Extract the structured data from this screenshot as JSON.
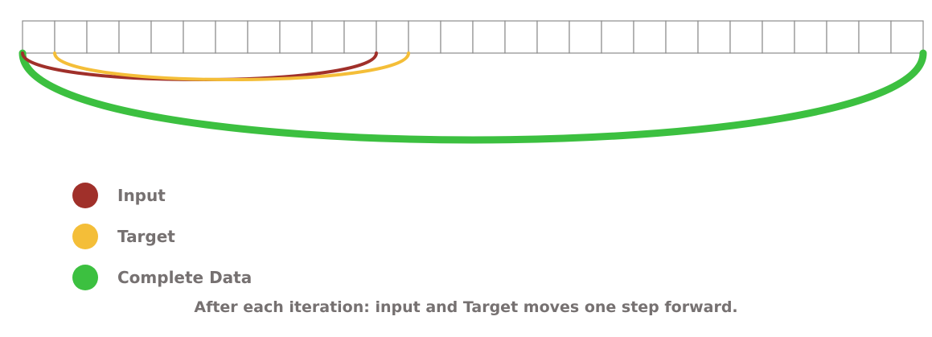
{
  "diagram": {
    "cell_count": 28,
    "input_span": {
      "start_cell": 0,
      "end_cell": 11
    },
    "target_span": {
      "start_cell": 1,
      "end_cell": 12
    },
    "complete_span": {
      "start_cell": 0,
      "end_cell": 28
    }
  },
  "legend": {
    "items": [
      {
        "key": "input",
        "label": "Input",
        "color": "#a0302a"
      },
      {
        "key": "target",
        "label": "Target",
        "color": "#f4be38"
      },
      {
        "key": "complete",
        "label": "Complete Data",
        "color": "#3cc040"
      }
    ]
  },
  "caption": "After each iteration: input and Target moves one step forward."
}
